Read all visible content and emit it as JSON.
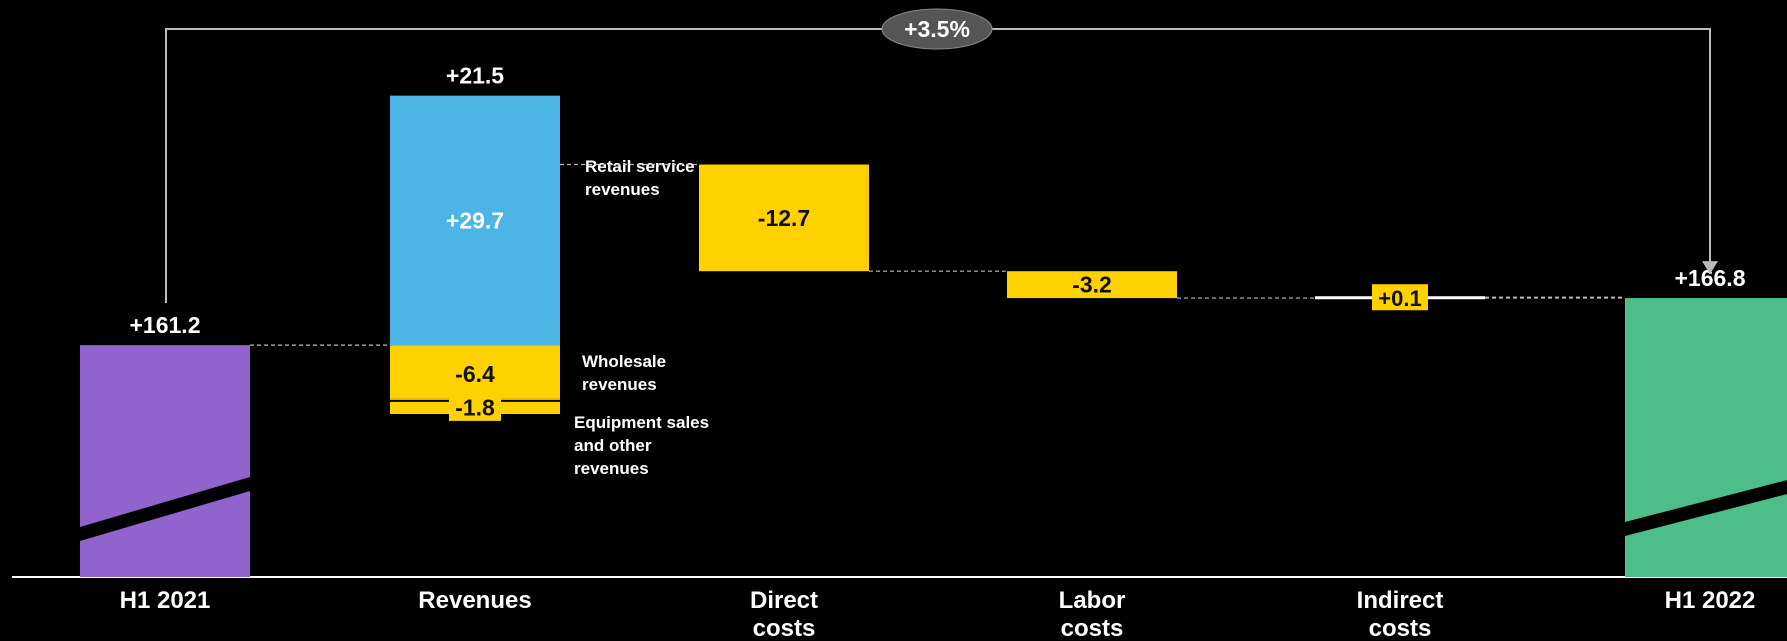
{
  "chart_data": {
    "type": "waterfall",
    "title": "",
    "xlabel": "",
    "ylabel": "",
    "categories": [
      "H1 2021",
      "Revenues",
      "Direct costs",
      "Labor costs",
      "Indirect costs",
      "H1 2022"
    ],
    "category_label_lines": [
      [
        "H1 2021"
      ],
      [
        "Revenues"
      ],
      [
        "Direct",
        "costs"
      ],
      [
        "Labor",
        "costs"
      ],
      [
        "Indirect",
        "costs"
      ],
      [
        "H1 2022"
      ]
    ],
    "start": {
      "label": "+161.2",
      "value": 161.2
    },
    "end": {
      "label": "+166.8",
      "value": 166.8
    },
    "revenues_total_label": "+21.5",
    "revenue_components": [
      {
        "label": "-6.4",
        "value": -6.4,
        "name_lines": [
          "Wholesale",
          "revenues"
        ]
      },
      {
        "label": "-1.8",
        "value": -1.8,
        "name_lines": [
          "Equipment sales",
          "and other",
          "revenues"
        ]
      },
      {
        "label": "+29.7",
        "value": 29.7,
        "name_lines": [
          "Retail service",
          "revenues"
        ]
      }
    ],
    "deltas": [
      {
        "label": "-12.7",
        "value": -12.7
      },
      {
        "label": "-3.2",
        "value": -3.2
      },
      {
        "label": "+0.1",
        "value": 0.1
      }
    ],
    "growth_label": "+3.5%",
    "axis_break": true,
    "colors": {
      "start": "#9063CD",
      "end": "#4DBE89",
      "increase": "#4DB4E6",
      "decrease": "#FFD100",
      "background": "#000000",
      "text": "#FFFFFF",
      "connector": "#BBBBBB",
      "pill": "#555555"
    }
  }
}
